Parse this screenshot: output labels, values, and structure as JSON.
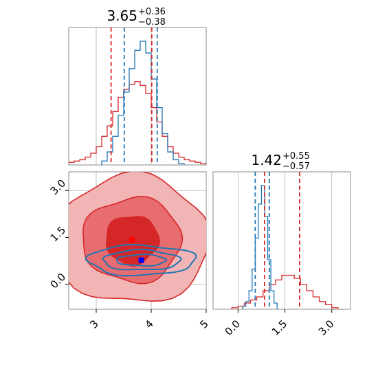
{
  "colors": {
    "red": "#d62728",
    "blue": "#1f77b4",
    "grid": "#b0b0b0",
    "axes": "#888888"
  },
  "chart_data": [
    {
      "type": "histogram",
      "panel": "top-left",
      "parameter_index": 0,
      "title": {
        "main": "3.65",
        "plus": "+0.36",
        "minus": "−0.38"
      },
      "xlim": [
        2.5,
        5.0
      ],
      "quantiles": {
        "red": [
          3.27,
          4.01
        ],
        "blue": [
          3.51,
          4.11
        ]
      },
      "grid": true,
      "series": [
        {
          "color_key": "red",
          "x": [
            2.55,
            2.65,
            2.75,
            2.85,
            2.95,
            3.05,
            3.15,
            3.25,
            3.35,
            3.45,
            3.55,
            3.65,
            3.75,
            3.85,
            3.95,
            4.05,
            4.15,
            4.25,
            4.35,
            4.45,
            4.55,
            4.65,
            4.75,
            4.85,
            4.95
          ],
          "values": [
            2,
            3,
            4,
            6,
            9,
            14,
            22,
            30,
            41,
            52,
            58,
            62,
            64,
            61,
            55,
            44,
            33,
            22,
            14,
            9,
            6,
            4,
            3,
            2,
            1
          ]
        },
        {
          "color_key": "blue",
          "x": [
            3.15,
            3.25,
            3.35,
            3.45,
            3.55,
            3.65,
            3.75,
            3.85,
            3.95,
            4.05,
            4.15,
            4.25,
            4.35,
            4.45,
            4.55
          ],
          "values": [
            3,
            10,
            22,
            38,
            56,
            74,
            88,
            95,
            86,
            66,
            44,
            24,
            10,
            4,
            1
          ]
        }
      ]
    },
    {
      "type": "contour",
      "panel": "bottom-left",
      "xlim": [
        2.5,
        5.0
      ],
      "ylim": [
        -0.8,
        3.6
      ],
      "xticks": [
        "3",
        "4",
        "5"
      ],
      "xtick_values": [
        3,
        4,
        5
      ],
      "yticks": [
        "0.0",
        "1.5",
        "3.0"
      ],
      "ytick_values": [
        0.0,
        1.5,
        3.0
      ],
      "grid": true,
      "points": [
        {
          "color_key": "red",
          "x": 3.65,
          "y": 1.42
        },
        {
          "color_key": "blue",
          "x": 3.82,
          "y": 0.77
        }
      ],
      "contours": [
        {
          "color_key": "red",
          "cx": 3.65,
          "cy": 1.42,
          "levels": [
            [
              0.48,
              0.78
            ],
            [
              0.9,
              1.35
            ],
            [
              1.4,
              2.05
            ]
          ]
        },
        {
          "color_key": "blue",
          "cx": 3.82,
          "cy": 0.77,
          "levels": [
            [
              0.45,
              0.18
            ],
            [
              0.7,
              0.32
            ],
            [
              0.98,
              0.48
            ]
          ]
        }
      ]
    },
    {
      "type": "histogram",
      "panel": "bottom-right",
      "parameter_index": 1,
      "title": {
        "main": "1.42",
        "plus": "+0.55",
        "minus": "−0.57"
      },
      "xlim": [
        -0.8,
        3.6
      ],
      "xticks": [
        "0.0",
        "1.5",
        "3.0"
      ],
      "xtick_values": [
        0.0,
        1.5,
        3.0
      ],
      "quantiles": {
        "red": [
          0.85,
          1.97
        ],
        "blue": [
          0.55,
          1.0
        ]
      },
      "grid": true,
      "series": [
        {
          "color_key": "red",
          "x": [
            -0.1,
            0.1,
            0.3,
            0.5,
            0.7,
            0.9,
            1.1,
            1.3,
            1.5,
            1.7,
            1.9,
            2.1,
            2.3,
            2.5,
            2.7,
            2.9,
            3.1
          ],
          "values": [
            1,
            2,
            4,
            6,
            8,
            12,
            16,
            19,
            22,
            22,
            20,
            16,
            12,
            8,
            5,
            3,
            1
          ]
        },
        {
          "color_key": "blue",
          "x": [
            0.2,
            0.3,
            0.4,
            0.5,
            0.6,
            0.7,
            0.8,
            0.9,
            1.0,
            1.1,
            1.2
          ],
          "values": [
            2,
            5,
            12,
            26,
            46,
            68,
            80,
            60,
            32,
            12,
            4
          ]
        }
      ]
    }
  ]
}
